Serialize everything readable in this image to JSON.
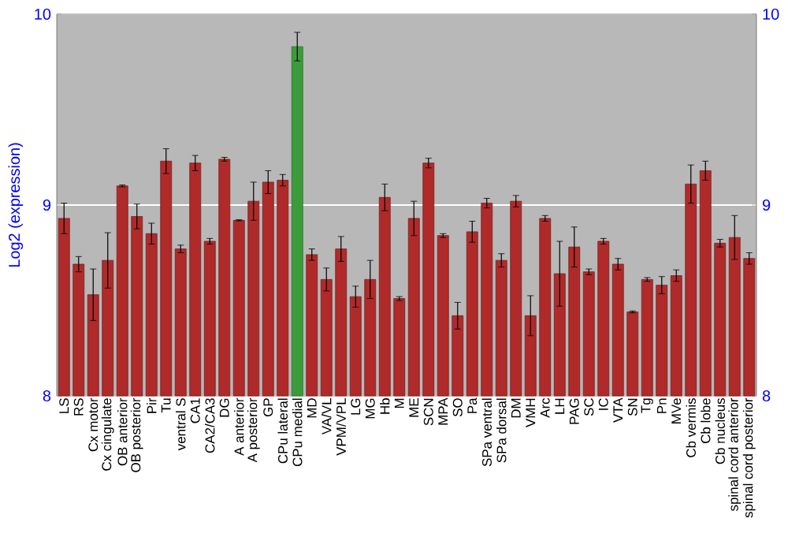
{
  "chart_data": {
    "type": "bar",
    "ylabel": "Log2 (expression)",
    "categories": [
      "LS",
      "RS",
      "Cx motor",
      "Cx cingulate",
      "OB anterior",
      "OB posterior",
      "Pir",
      "Tu",
      "ventral S",
      "CA1",
      "CA2/CA3",
      "DG",
      "A anterior",
      "A posterior",
      "GP",
      "CPu lateral",
      "CPu medial",
      "MD",
      "VA/VL",
      "VPM/VPL",
      "LG",
      "MG",
      "Hb",
      "M",
      "ME",
      "SCN",
      "MPA",
      "SO",
      "Pa",
      "SPa ventral",
      "SPa dorsal",
      "DM",
      "VMH",
      "Arc",
      "LH",
      "PAG",
      "SC",
      "IC",
      "VTA",
      "SN",
      "Tg",
      "Pn",
      "MVe",
      "Cb vermis",
      "Cb lobe",
      "Cb nucleus",
      "spinal cord anterior",
      "spinal cord posterior"
    ],
    "values": [
      8.93,
      8.69,
      8.53,
      8.71,
      9.1,
      8.94,
      8.85,
      9.23,
      8.77,
      9.22,
      8.81,
      9.24,
      8.92,
      9.02,
      9.12,
      9.13,
      9.83,
      8.74,
      8.61,
      8.77,
      8.52,
      8.61,
      9.04,
      8.51,
      8.93,
      9.22,
      8.84,
      8.42,
      8.86,
      9.01,
      8.71,
      9.02,
      8.42,
      8.93,
      8.64,
      8.78,
      8.65,
      8.81,
      8.69,
      8.44,
      8.61,
      8.58,
      8.63,
      9.11,
      9.18,
      8.8,
      8.83,
      8.72
    ],
    "errors": [
      0.08,
      0.04,
      0.135,
      0.145,
      0.005,
      0.065,
      0.055,
      0.065,
      0.02,
      0.04,
      0.015,
      0.01,
      0.003,
      0.1,
      0.06,
      0.03,
      0.075,
      0.03,
      0.06,
      0.065,
      0.055,
      0.1,
      0.07,
      0.01,
      0.09,
      0.025,
      0.01,
      0.07,
      0.055,
      0.025,
      0.035,
      0.03,
      0.105,
      0.015,
      0.17,
      0.105,
      0.015,
      0.015,
      0.03,
      0.005,
      0.01,
      0.045,
      0.03,
      0.1,
      0.05,
      0.02,
      0.115,
      0.03
    ],
    "colors": [
      "#b02a2a",
      "#b02a2a",
      "#b02a2a",
      "#b02a2a",
      "#b02a2a",
      "#b02a2a",
      "#b02a2a",
      "#b02a2a",
      "#b02a2a",
      "#b02a2a",
      "#b02a2a",
      "#b02a2a",
      "#b02a2a",
      "#b02a2a",
      "#b02a2a",
      "#b02a2a",
      "#3c9c3c",
      "#b02a2a",
      "#b02a2a",
      "#b02a2a",
      "#b02a2a",
      "#b02a2a",
      "#b02a2a",
      "#b02a2a",
      "#b02a2a",
      "#b02a2a",
      "#b02a2a",
      "#b02a2a",
      "#b02a2a",
      "#b02a2a",
      "#b02a2a",
      "#b02a2a",
      "#b02a2a",
      "#b02a2a",
      "#b02a2a",
      "#b02a2a",
      "#b02a2a",
      "#b02a2a",
      "#b02a2a",
      "#b02a2a",
      "#b02a2a",
      "#b02a2a",
      "#b02a2a",
      "#b02a2a",
      "#b02a2a",
      "#b02a2a",
      "#b02a2a",
      "#b02a2a"
    ],
    "ylim": [
      8,
      10
    ],
    "yticks": [
      8,
      9,
      10
    ],
    "y2lim": [
      8,
      10
    ],
    "y2ticks": [
      8,
      9,
      10
    ],
    "grid": "y"
  }
}
